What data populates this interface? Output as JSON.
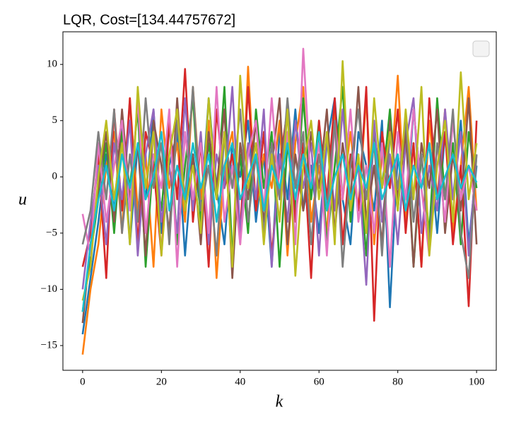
{
  "chart_data": {
    "type": "line",
    "title": "LQR, Cost=[134.44757672]",
    "xlabel": "k",
    "ylabel": "u",
    "x": [
      0,
      2,
      4,
      6,
      8,
      10,
      12,
      14,
      16,
      18,
      20,
      22,
      24,
      26,
      28,
      30,
      32,
      34,
      36,
      38,
      40,
      42,
      44,
      46,
      48,
      50,
      52,
      54,
      56,
      58,
      60,
      62,
      64,
      66,
      68,
      70,
      72,
      74,
      76,
      78,
      80,
      82,
      84,
      86,
      88,
      90,
      92,
      94,
      96,
      98,
      100
    ],
    "series": [
      {
        "color": "#1f77b4",
        "values": [
          -14,
          -9,
          -4,
          2,
          -3,
          5,
          -6,
          3,
          -2,
          6,
          -5,
          1,
          4,
          -7,
          2,
          -3,
          7,
          -1,
          -6,
          3,
          0,
          5,
          -4,
          2,
          -8,
          4,
          -2,
          6,
          -3,
          1,
          -5,
          3,
          7,
          -2,
          -6,
          4,
          1,
          -3,
          5,
          -11.6,
          2,
          -4,
          6,
          -1,
          3,
          -5,
          4,
          -2,
          5,
          -6,
          1
        ]
      },
      {
        "color": "#ff7f0e",
        "values": [
          -15.8,
          -10,
          -6,
          1,
          4,
          -5,
          7,
          -3,
          2,
          -8,
          6,
          -1,
          3,
          -4,
          8,
          -2,
          5,
          -9,
          1,
          4,
          -6,
          9.8,
          -3,
          2,
          -1,
          5,
          -7,
          3,
          8,
          -4,
          1,
          -5,
          6,
          -2,
          4,
          -3,
          7,
          -6,
          2,
          -1,
          9,
          -4,
          3,
          -8,
          5,
          -2,
          6,
          -5,
          1,
          8,
          -3
        ]
      },
      {
        "color": "#2ca02c",
        "values": [
          -12,
          -7,
          -2,
          3,
          -5,
          4,
          -1,
          6,
          -8,
          2,
          -3,
          5,
          -6,
          1,
          7,
          -4,
          3,
          -2,
          8,
          -7,
          2,
          -5,
          6,
          -1,
          4,
          -8,
          3,
          -3,
          7,
          -2,
          5,
          -6,
          1,
          8,
          -4,
          2,
          -7,
          4,
          -1,
          6,
          -3,
          5,
          -8,
          2,
          -5,
          7,
          -2,
          3,
          -6,
          4,
          -1
        ]
      },
      {
        "color": "#d62728",
        "values": [
          -8,
          -5,
          2,
          -9,
          6,
          -3,
          7,
          -6,
          4,
          1,
          -7,
          5,
          -2,
          9.6,
          -4,
          3,
          -8,
          6,
          -1,
          2,
          -5,
          8,
          -3,
          4,
          -7,
          1,
          6,
          -4,
          3,
          -9,
          5,
          -2,
          7,
          -6,
          2,
          -3,
          8,
          -12.8,
          4,
          -1,
          6,
          -5,
          3,
          -8,
          7,
          -2,
          4,
          -6,
          1,
          -11.5,
          5
        ]
      },
      {
        "color": "#9467bd",
        "values": [
          -10,
          -4,
          1,
          -6,
          3,
          -2,
          5,
          -7,
          2,
          6,
          -4,
          1,
          -5,
          7,
          -3,
          4,
          -6,
          2,
          -1,
          8,
          -5,
          3,
          -2,
          6,
          -8,
          2,
          -4,
          5,
          -1,
          3,
          -7,
          4,
          -3,
          6,
          -2,
          1,
          -9.6,
          5,
          -4,
          2,
          -6,
          3,
          7,
          -5,
          1,
          -3,
          6,
          -2,
          4,
          -7,
          2
        ]
      },
      {
        "color": "#8c564b",
        "values": [
          -13,
          -6,
          -1,
          4,
          -4,
          6,
          -2,
          3,
          -7,
          5,
          1,
          -5,
          7,
          -3,
          2,
          -6,
          4,
          -1,
          6,
          -9,
          3,
          -2,
          5,
          -4,
          1,
          7,
          -6,
          2,
          -3,
          4,
          -1,
          6,
          -5,
          3,
          -2,
          8,
          -4,
          1,
          -6,
          5,
          -2,
          4,
          -8,
          3,
          -1,
          6,
          -5,
          2,
          -3,
          7,
          -6
        ]
      },
      {
        "color": "#e377c2",
        "values": [
          -3.3,
          -7,
          3,
          -4,
          1,
          5,
          -3,
          7,
          -5,
          2,
          -1,
          6,
          -8,
          4,
          -2,
          3,
          -5,
          8,
          -4,
          1,
          -6,
          2,
          5,
          -3,
          7,
          -2,
          4,
          -6,
          11.4,
          -1,
          3,
          -7,
          5,
          -2,
          6,
          -4,
          1,
          -5,
          3,
          -8,
          4,
          -2,
          6,
          -1,
          -7,
          3,
          -4,
          5,
          -2,
          1,
          -3
        ]
      },
      {
        "color": "#7f7f7f",
        "values": [
          -6,
          -3,
          4,
          -2,
          6,
          -5,
          2,
          -4,
          7,
          -1,
          3,
          -6,
          5,
          -2,
          8,
          -3,
          1,
          -7,
          4,
          -1,
          6,
          -4,
          2,
          -5,
          3,
          -2,
          7,
          -1,
          4,
          -6,
          2,
          -3,
          5,
          -8,
          1,
          6,
          -2,
          3,
          -7,
          4,
          -1,
          5,
          -4,
          2,
          -6,
          3,
          -2,
          6,
          -5,
          -9,
          2
        ]
      },
      {
        "color": "#bcbd22",
        "values": [
          -11,
          -8,
          0,
          5,
          -2,
          3,
          -6,
          8,
          -1,
          4,
          -7,
          2,
          6,
          -3,
          1,
          -5,
          7,
          -2,
          4,
          -8,
          9,
          -1,
          3,
          -6,
          2,
          -4,
          6,
          -8.8,
          1,
          5,
          -2,
          4,
          -6,
          10.3,
          -3,
          2,
          -5,
          7,
          -1,
          4,
          -3,
          6,
          -2,
          8,
          -7,
          1,
          5,
          -4,
          9.3,
          -2,
          3
        ]
      },
      {
        "color": "#17becf",
        "values": [
          -12,
          -6,
          -2,
          1,
          -3,
          2,
          -1,
          3,
          -2,
          0,
          4,
          -3,
          1,
          -2,
          3,
          -1,
          2,
          -4,
          1,
          3,
          -2,
          0,
          2,
          -3,
          1,
          -1,
          3,
          -2,
          2,
          -1,
          4,
          -3,
          0,
          2,
          -2,
          1,
          -1,
          3,
          -2,
          0,
          2,
          -3,
          1,
          -1,
          3,
          -2,
          0,
          2,
          -1,
          1,
          -0.5
        ]
      }
    ],
    "xlim": [
      -5,
      105
    ],
    "ylim": [
      -17.2,
      12.9
    ],
    "xticks": [
      0,
      20,
      40,
      60,
      80,
      100
    ],
    "yticks": [
      {
        "value": -15,
        "label": "−15"
      },
      {
        "value": -10,
        "label": "−10"
      },
      {
        "value": -5,
        "label": "−5"
      },
      0,
      5,
      10
    ],
    "legend": "upper right"
  }
}
